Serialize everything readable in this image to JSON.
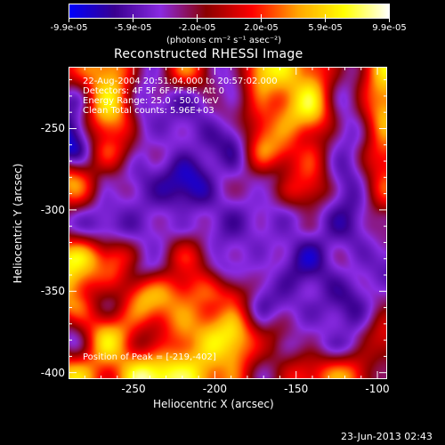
{
  "colorbar": {
    "ticks": [
      "-9.9e-05",
      "-5.9e-05",
      "-2.0e-05",
      "2.0e-05",
      "5.9e-05",
      "9.9e-05"
    ],
    "units": "(photons cm⁻² s⁻¹ asec⁻²)",
    "min": -9.9e-05,
    "max": 9.9e-05
  },
  "title": "Reconstructed RHESSI Image",
  "annotations": {
    "time_range": "22-Aug-2004 20:51:04.000 to 20:57:02.000",
    "detectors": "Detectors: 4F 5F 6F 7F 8F, Att 0",
    "energy": "Energy Range: 25.0 - 50.0 keV",
    "clean": "Clean    Total counts: 5.96E+03",
    "peak": "Position of Peak = [-219,-402]"
  },
  "footer_date": "23-Jun-2013 02:43",
  "chart_data": {
    "type": "heatmap",
    "title": "Reconstructed RHESSI Image",
    "xlabel": "Heliocentric X (arcsec)",
    "ylabel": "Heliocentric Y (arcsec)",
    "xlim": [
      -290,
      -94
    ],
    "ylim": [
      -404,
      -212
    ],
    "x_ticks": [
      {
        "value": -250,
        "label": "-250"
      },
      {
        "value": -200,
        "label": "-200"
      },
      {
        "value": -150,
        "label": "-150"
      },
      {
        "value": -100,
        "label": "-100"
      }
    ],
    "y_ticks": [
      {
        "value": -250,
        "label": "-250"
      },
      {
        "value": -300,
        "label": "-300"
      },
      {
        "value": -350,
        "label": "-350"
      },
      {
        "value": -400,
        "label": "-400"
      }
    ],
    "colormap": [
      "#0000ff",
      "#3a0090",
      "#8a2be2",
      "#8b0000",
      "#ff0000",
      "#ffa500",
      "#ffff00",
      "#ffffff"
    ],
    "peak": [
      -219,
      -402
    ],
    "grid_cols": 9,
    "grid_rows": 9,
    "values": [
      [
        0.55,
        0.75,
        0.3,
        0.65,
        0.25,
        0.85,
        0.7,
        0.35,
        0.8
      ],
      [
        0.2,
        0.8,
        0.25,
        0.2,
        0.35,
        0.6,
        0.85,
        0.3,
        0.75
      ],
      [
        0.05,
        0.6,
        0.3,
        0.25,
        0.15,
        0.7,
        0.55,
        0.25,
        0.65
      ],
      [
        0.7,
        0.35,
        0.2,
        0.05,
        0.3,
        0.35,
        0.6,
        0.2,
        0.6
      ],
      [
        0.3,
        0.2,
        0.25,
        0.3,
        0.2,
        0.25,
        0.3,
        0.15,
        0.4
      ],
      [
        0.85,
        0.65,
        0.3,
        0.55,
        0.25,
        0.3,
        0.1,
        0.3,
        0.2
      ],
      [
        0.7,
        0.4,
        0.75,
        0.65,
        0.6,
        0.2,
        0.25,
        0.15,
        0.35
      ],
      [
        0.3,
        0.8,
        0.45,
        0.7,
        0.85,
        0.45,
        0.3,
        0.25,
        0.55
      ],
      [
        0.8,
        0.6,
        0.95,
        0.85,
        0.65,
        0.35,
        0.6,
        0.7,
        0.3
      ]
    ]
  }
}
